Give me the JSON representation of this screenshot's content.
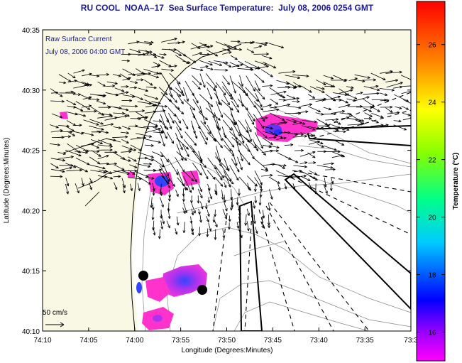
{
  "title": "RU COOL  NOAA–17  Sea Surface Temperature:  July 08, 2006 0254 GMT",
  "legend": {
    "current_label": "Raw Surface Current",
    "current_time": "July 08, 2006 04:00 GMT",
    "scale_label": "50 cm/s"
  },
  "axes": {
    "xlabel": "Longitude (Degrees:Minutes)",
    "ylabel": "Latitude (Degrees:Minutes)",
    "x_ticks": [
      "74:10",
      "74:05",
      "74:00",
      "73:55",
      "73:50",
      "73:45",
      "73:40",
      "73:35",
      "73:3"
    ],
    "y_ticks": [
      "40:35",
      "40:30",
      "40:25",
      "40:20",
      "40:15",
      "40:10"
    ]
  },
  "colorbar": {
    "label": "Temperature (°C)",
    "ticks": [
      "26",
      "24",
      "22",
      "20",
      "18",
      "16"
    ],
    "range": [
      15,
      27.5
    ]
  },
  "colors": {
    "title": "#1a1aa0",
    "land": "#f8f8e4",
    "sst_warm": "#ff33cc",
    "sst_cool": "#3333ff"
  }
}
